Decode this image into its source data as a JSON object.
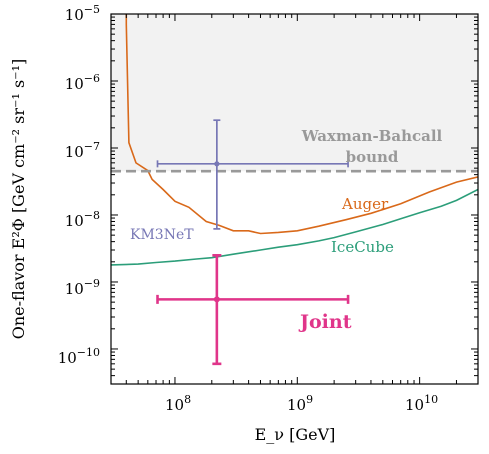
{
  "chart_data": {
    "type": "line",
    "xlabel": "E_ν [GeV]",
    "ylabel": "One-flavor E²Φ [GeV cm⁻² sr⁻¹ s⁻¹]",
    "x_scale": "log",
    "y_scale": "log",
    "xlim": [
      30000000,
      30000000000
    ],
    "ylim": [
      3e-11,
      1e-05
    ],
    "x_ticks": [
      {
        "value": 100000000,
        "base": "10",
        "exp": "8"
      },
      {
        "value": 1000000000,
        "base": "10",
        "exp": "9"
      },
      {
        "value": 10000000000,
        "base": "10",
        "exp": "10"
      }
    ],
    "y_ticks": [
      {
        "value": 1e-05,
        "base": "10",
        "exp": "−5"
      },
      {
        "value": 1e-06,
        "base": "10",
        "exp": "−6"
      },
      {
        "value": 1e-07,
        "base": "10",
        "exp": "−7"
      },
      {
        "value": 1e-08,
        "base": "10",
        "exp": "−8"
      },
      {
        "value": 1e-09,
        "base": "10",
        "exp": "−9"
      },
      {
        "value": 1e-10,
        "base": "10",
        "exp": "−10"
      }
    ],
    "shaded_region": {
      "y_from": 4.5e-08,
      "y_to": 1e-05,
      "color": "#f2f2f2"
    },
    "hlines": [
      {
        "name": "Waxman-Bahcall bound",
        "y": 4.5e-08,
        "color": "#999999",
        "dash": true
      }
    ],
    "series": [
      {
        "name": "Auger",
        "color": "#d9691a",
        "x": [
          40000000,
          40000000,
          42000000,
          48000000,
          60000000,
          65000000,
          80000000,
          100000000,
          130000000,
          180000000,
          230000000,
          300000000,
          400000000,
          500000000,
          700000000,
          1000000000,
          1500000000,
          2500000000,
          4000000000,
          7000000000,
          12000000000,
          20000000000,
          30000000000
        ],
        "y": [
          1e-05,
          7e-06,
          1.2e-07,
          6e-08,
          4.6e-08,
          3.4e-08,
          2.4e-08,
          1.6e-08,
          1.3e-08,
          8e-09,
          7e-09,
          5.8e-09,
          5.8e-09,
          5.3e-09,
          5.5e-09,
          5.8e-09,
          6.8e-09,
          8.5e-09,
          1.06e-08,
          1.47e-08,
          2.2e-08,
          3.1e-08,
          3.7e-08
        ]
      },
      {
        "name": "IceCube",
        "color": "#2c9e7a",
        "x": [
          30000000,
          50000000,
          70000000,
          100000000,
          150000000,
          200000000,
          300000000,
          500000000,
          700000000,
          1000000000,
          1500000000,
          2000000000,
          3000000000,
          5000000000,
          7000000000,
          10000000000,
          15000000000,
          20000000000,
          30000000000
        ],
        "y": [
          1.8e-09,
          1.85e-09,
          1.95e-09,
          2.05e-09,
          2.2e-09,
          2.3e-09,
          2.6e-09,
          3e-09,
          3.3e-09,
          3.6e-09,
          4.1e-09,
          4.6e-09,
          5.6e-09,
          7.2e-09,
          8.8e-09,
          1.08e-08,
          1.35e-08,
          1.65e-08,
          2.4e-08
        ]
      }
    ],
    "points": [
      {
        "name": "KM3NeT",
        "color": "#7777b5",
        "x": 220000000,
        "y": 5.8e-08,
        "x_err": [
          72000000,
          2600000000
        ],
        "y_err": [
          6.2e-09,
          2.6e-07
        ]
      },
      {
        "name": "Joint",
        "color": "#e0358a",
        "x": 220000000,
        "y": 5.5e-10,
        "x_err": [
          72000000,
          2600000000
        ],
        "y_err": [
          6e-11,
          2.5e-09
        ]
      }
    ],
    "annotations": [
      {
        "key": "wb",
        "line1": "Waxman-Bahcall",
        "line2": "bound",
        "color": "#999999"
      },
      {
        "key": "auger",
        "text": "Auger",
        "color": "#d9691a"
      },
      {
        "key": "km3",
        "text": "KM3NeT",
        "color": "#7777b5"
      },
      {
        "key": "icecube",
        "text": "IceCube",
        "color": "#2c9e7a"
      },
      {
        "key": "joint",
        "text": "Joint",
        "color": "#e0358a"
      }
    ]
  }
}
